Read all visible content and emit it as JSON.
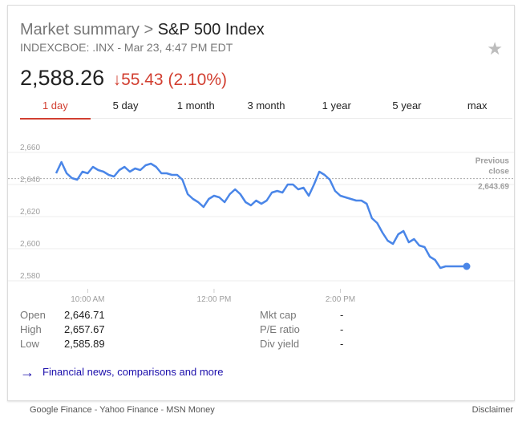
{
  "header": {
    "crumb": "Market summary",
    "crumb_sep": " > ",
    "name": "S&P 500 Index",
    "subtitle": "INDEXCBOE: .INX - Mar 23, 4:47 PM EDT",
    "star_icon": "star-icon"
  },
  "quote": {
    "price": "2,588.26",
    "change_arrow": "↓",
    "change": "55.43 (2.10%)",
    "down_color": "#d23f31"
  },
  "tabs": [
    "1 day",
    "5 day",
    "1 month",
    "3 month",
    "1 year",
    "5 year",
    "max"
  ],
  "active_tab": 0,
  "stats_left": [
    {
      "label": "Open",
      "value": "2,646.71"
    },
    {
      "label": "High",
      "value": "2,657.67"
    },
    {
      "label": "Low",
      "value": "2,585.89"
    }
  ],
  "stats_right": [
    {
      "label": "Mkt cap",
      "value": "-"
    },
    {
      "label": "P/E ratio",
      "value": "-"
    },
    {
      "label": "Div yield",
      "value": "-"
    }
  ],
  "more_link": "Financial news, comparisons and more",
  "footer": {
    "links": [
      "Google Finance",
      "Yahoo Finance",
      "MSN Money"
    ],
    "separator": " - ",
    "disclaimer": "Disclaimer"
  },
  "chart_data": {
    "type": "line",
    "line_color": "#4a86e8",
    "ylim": [
      2575,
      2665
    ],
    "xlim": [
      "9:30 AM",
      "4:00 PM"
    ],
    "y_ticks": [
      "2,660",
      "2,640",
      "2,620",
      "2,600",
      "2,580"
    ],
    "x_ticks": [
      "10:00 AM",
      "12:00 PM",
      "2:00 PM"
    ],
    "reference": {
      "label_line1": "Previous",
      "label_line2": "close",
      "value_label": "2,643.69",
      "value": 2643.69
    },
    "series": [
      {
        "x": [
          "9:30",
          "9:35",
          "9:40",
          "9:45",
          "9:50",
          "9:55",
          "10:00",
          "10:05",
          "10:10",
          "10:15",
          "10:20",
          "10:25",
          "10:30",
          "10:35",
          "10:40",
          "10:45",
          "10:50",
          "10:55",
          "11:00",
          "11:05",
          "11:10",
          "11:15",
          "11:20",
          "11:25",
          "11:30",
          "11:35",
          "11:40",
          "11:45",
          "11:50",
          "11:55",
          "12:00",
          "12:05",
          "12:10",
          "12:15",
          "12:20",
          "12:25",
          "12:30",
          "12:35",
          "12:40",
          "12:45",
          "12:50",
          "12:55",
          "13:00",
          "13:05",
          "13:10",
          "13:15",
          "13:20",
          "13:25",
          "13:30",
          "13:35",
          "13:40",
          "13:45",
          "13:50",
          "13:55",
          "14:00",
          "14:05",
          "14:10",
          "14:15",
          "14:20",
          "14:25",
          "14:30",
          "14:35",
          "14:40",
          "14:45",
          "14:50",
          "14:55",
          "15:00",
          "15:05",
          "15:10",
          "15:15",
          "15:20",
          "15:25",
          "15:30",
          "15:35",
          "15:40",
          "15:45",
          "15:50",
          "15:55",
          "16:00"
        ],
        "values": [
          2647,
          2654,
          2647,
          2644,
          2643,
          2648,
          2647,
          2651,
          2649,
          2648,
          2646,
          2645,
          2649,
          2651,
          2648,
          2650,
          2649,
          2652,
          2653,
          2651,
          2647,
          2647,
          2646,
          2646,
          2643,
          2634,
          2631,
          2629,
          2626,
          2631,
          2633,
          2632,
          2629,
          2634,
          2637,
          2634,
          2629,
          2627,
          2630,
          2628,
          2630,
          2635,
          2636,
          2635,
          2640,
          2640,
          2637,
          2638,
          2633,
          2640,
          2648,
          2646,
          2643,
          2636,
          2633,
          2632,
          2631,
          2630,
          2630,
          2628,
          2619,
          2616,
          2610,
          2605,
          2603,
          2609,
          2611,
          2604,
          2606,
          2602,
          2601,
          2595,
          2593,
          2588,
          2589,
          2589,
          2589,
          2589,
          2589
        ]
      }
    ]
  }
}
